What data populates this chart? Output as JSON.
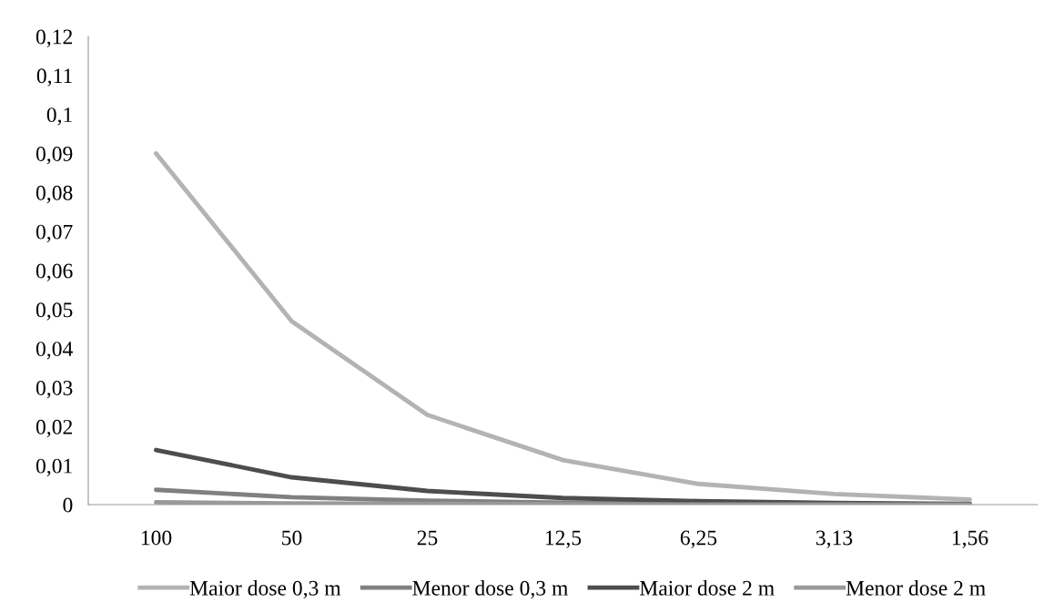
{
  "chart_data": {
    "type": "line",
    "categories": [
      "100",
      "50",
      "25",
      "12,5",
      "6,25",
      "3,13",
      "1,56"
    ],
    "series": [
      {
        "name": "Maior dose 0,3 m",
        "color": "#b3b3b3",
        "values": [
          0.09,
          0.047,
          0.023,
          0.0114,
          0.0053,
          0.0027,
          0.0013
        ]
      },
      {
        "name": "Menor dose 0,3 m",
        "color": "#808080",
        "values": [
          0.0038,
          0.0019,
          0.001,
          0.0005,
          0.0002,
          0.0001,
          0.0001
        ]
      },
      {
        "name": "Maior dose 2 m",
        "color": "#4d4d4d",
        "values": [
          0.014,
          0.007,
          0.0035,
          0.0017,
          0.0009,
          0.0004,
          0.0002
        ]
      },
      {
        "name": "Menor dose 2 m",
        "color": "#999999",
        "values": [
          0.0006,
          0.0003,
          0.0002,
          0.0001,
          0,
          0,
          0
        ]
      }
    ],
    "ylim": [
      0,
      0.12
    ],
    "yticks": [
      {
        "value": 0,
        "label": "0"
      },
      {
        "value": 0.01,
        "label": "0,01"
      },
      {
        "value": 0.02,
        "label": "0,02"
      },
      {
        "value": 0.03,
        "label": "0,03"
      },
      {
        "value": 0.04,
        "label": "0,04"
      },
      {
        "value": 0.05,
        "label": "0,05"
      },
      {
        "value": 0.06,
        "label": "0,06"
      },
      {
        "value": 0.07,
        "label": "0,07"
      },
      {
        "value": 0.08,
        "label": "0,08"
      },
      {
        "value": 0.09,
        "label": "0,09"
      },
      {
        "value": 0.1,
        "label": "0,1"
      },
      {
        "value": 0.11,
        "label": "0,11"
      },
      {
        "value": 0.12,
        "label": "0,12"
      }
    ],
    "grid": false,
    "legend": "bottom",
    "marker": "none",
    "line_style": "solid"
  }
}
